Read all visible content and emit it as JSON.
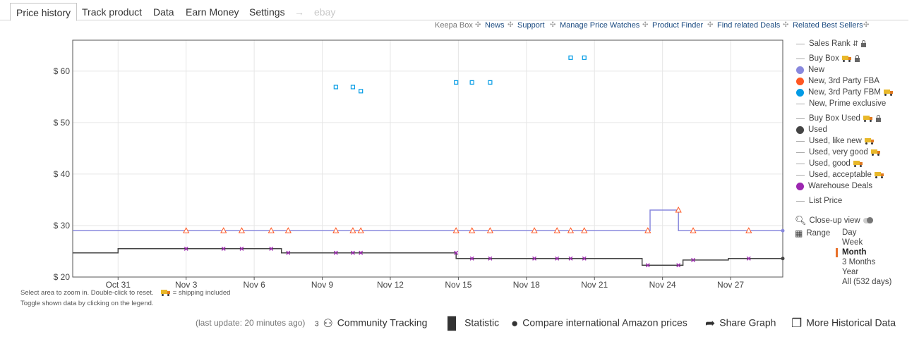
{
  "tabs": [
    {
      "label": "Price history",
      "active": true
    },
    {
      "label": "Track product"
    },
    {
      "label": "Data"
    },
    {
      "label": "Earn Money"
    },
    {
      "label": "Settings"
    },
    {
      "label": "→"
    },
    {
      "label": "ebay",
      "disabled": true
    }
  ],
  "toplinks": [
    "Keepa Box",
    "News",
    "Support",
    "Manage Price Watches",
    "Product Finder",
    "Find related Deals",
    "Related Best Sellers"
  ],
  "legend": {
    "items": [
      {
        "label": "Sales Rank",
        "marker": "line",
        "icon": "sort-icon",
        "lock": true
      },
      {
        "label": "Buy Box",
        "marker": "line",
        "truck": true,
        "lock": true
      },
      {
        "label": "New",
        "marker": "dot",
        "color": "#8888dd"
      },
      {
        "label": "New, 3rd Party FBA",
        "marker": "dot",
        "color": "#ff5722"
      },
      {
        "label": "New, 3rd Party FBM",
        "marker": "dot",
        "color": "#039be5",
        "truck": true
      },
      {
        "label": "New, Prime exclusive",
        "marker": "line"
      },
      {
        "label": "Buy Box Used",
        "marker": "line",
        "truck": true,
        "lock": true
      },
      {
        "label": "Used",
        "marker": "dot",
        "color": "#444444"
      },
      {
        "label": "Used, like new",
        "marker": "line",
        "truck": true
      },
      {
        "label": "Used, very good",
        "marker": "line",
        "truck": true
      },
      {
        "label": "Used, good",
        "marker": "line",
        "truck": true
      },
      {
        "label": "Used, acceptable",
        "marker": "line",
        "truck": true
      },
      {
        "label": "Warehouse Deals",
        "marker": "dot",
        "color": "#9c27b0"
      },
      {
        "label": "List Price",
        "marker": "line"
      }
    ]
  },
  "controls": {
    "closeup_label": "Close-up view",
    "range_label": "Range",
    "range_options": [
      "Day",
      "Week",
      "Month",
      "3 Months",
      "Year",
      "All (532 days)"
    ],
    "range_selected": "Month"
  },
  "hints": {
    "line1": "Select area to zoom in. Double-click to reset.",
    "shipping": "= shipping included",
    "line2": "Toggle shown data by clicking on the legend."
  },
  "footer": {
    "last_update": "(last update: 20 minutes ago)",
    "community_count": "3",
    "community": "Community Tracking",
    "statistic": "Statistic",
    "compare": "Compare international Amazon prices",
    "share": "Share Graph",
    "more": "More Historical Data"
  },
  "chart_data": {
    "type": "line",
    "x_unit": "days since Oct 29",
    "xlim": [
      0,
      31.3
    ],
    "ylim": [
      20,
      66
    ],
    "x_ticks": [
      {
        "x": 2,
        "label": "Oct 31"
      },
      {
        "x": 5,
        "label": "Nov 3"
      },
      {
        "x": 8,
        "label": "Nov 6"
      },
      {
        "x": 11,
        "label": "Nov 9"
      },
      {
        "x": 14,
        "label": "Nov 12"
      },
      {
        "x": 17,
        "label": "Nov 15"
      },
      {
        "x": 20,
        "label": "Nov 18"
      },
      {
        "x": 23,
        "label": "Nov 21"
      },
      {
        "x": 26,
        "label": "Nov 24"
      },
      {
        "x": 29,
        "label": "Nov 27"
      }
    ],
    "y_ticks": [
      {
        "y": 20,
        "label": "$ 20"
      },
      {
        "y": 30,
        "label": "$ 30"
      },
      {
        "y": 40,
        "label": "$ 40"
      },
      {
        "y": 50,
        "label": "$ 50"
      },
      {
        "y": 60,
        "label": "$ 60"
      }
    ],
    "series": [
      {
        "name": "New",
        "color": "#8888dd",
        "kind": "step",
        "points": [
          [
            0,
            29
          ],
          [
            25.45,
            29
          ],
          [
            25.45,
            33
          ],
          [
            26.7,
            33
          ],
          [
            26.7,
            29
          ],
          [
            31.3,
            29
          ]
        ]
      },
      {
        "name": "Used",
        "color": "#444444",
        "kind": "step",
        "points": [
          [
            0,
            24.7
          ],
          [
            2,
            24.7
          ],
          [
            2,
            25.5
          ],
          [
            9.2,
            25.5
          ],
          [
            9.2,
            24.7
          ],
          [
            16.9,
            24.7
          ],
          [
            16.9,
            23.6
          ],
          [
            25.1,
            23.6
          ],
          [
            25.1,
            22.3
          ],
          [
            26.9,
            22.3
          ],
          [
            26.9,
            23.3
          ],
          [
            28.9,
            23.3
          ],
          [
            28.9,
            23.6
          ],
          [
            31.3,
            23.6
          ]
        ]
      },
      {
        "name": "New, 3rd Party FBA",
        "color": "#ff5722",
        "kind": "triangle",
        "points": [
          [
            5,
            29
          ],
          [
            6.65,
            29
          ],
          [
            7.45,
            29
          ],
          [
            8.75,
            29
          ],
          [
            9.5,
            29
          ],
          [
            11.6,
            29
          ],
          [
            12.35,
            29
          ],
          [
            12.7,
            29
          ],
          [
            16.9,
            29
          ],
          [
            17.6,
            29
          ],
          [
            18.4,
            29
          ],
          [
            20.35,
            29
          ],
          [
            21.35,
            29
          ],
          [
            21.95,
            29
          ],
          [
            22.55,
            29
          ],
          [
            25.35,
            29
          ],
          [
            26.7,
            33
          ],
          [
            27.35,
            29
          ],
          [
            29.8,
            29
          ]
        ]
      },
      {
        "name": "New, 3rd Party FBM",
        "color": "#039be5",
        "kind": "square",
        "points": [
          [
            11.6,
            56.9
          ],
          [
            12.35,
            56.9
          ],
          [
            12.7,
            56.1
          ],
          [
            16.9,
            57.8
          ],
          [
            17.6,
            57.8
          ],
          [
            18.4,
            57.8
          ],
          [
            21.95,
            62.6
          ],
          [
            22.55,
            62.6
          ]
        ]
      },
      {
        "name": "Warehouse Deals",
        "color": "#9c27b0",
        "kind": "cross",
        "points": [
          [
            5,
            25.5
          ],
          [
            6.65,
            25.5
          ],
          [
            7.45,
            25.5
          ],
          [
            8.75,
            25.5
          ],
          [
            9.5,
            24.7
          ],
          [
            11.6,
            24.7
          ],
          [
            12.35,
            24.7
          ],
          [
            12.7,
            24.7
          ],
          [
            16.9,
            24.7
          ],
          [
            17.6,
            23.6
          ],
          [
            18.4,
            23.6
          ],
          [
            20.35,
            23.6
          ],
          [
            21.35,
            23.6
          ],
          [
            21.95,
            23.6
          ],
          [
            22.55,
            23.6
          ],
          [
            25.35,
            22.3
          ],
          [
            26.7,
            22.3
          ],
          [
            27.35,
            23.3
          ],
          [
            29.8,
            23.6
          ]
        ]
      }
    ]
  }
}
